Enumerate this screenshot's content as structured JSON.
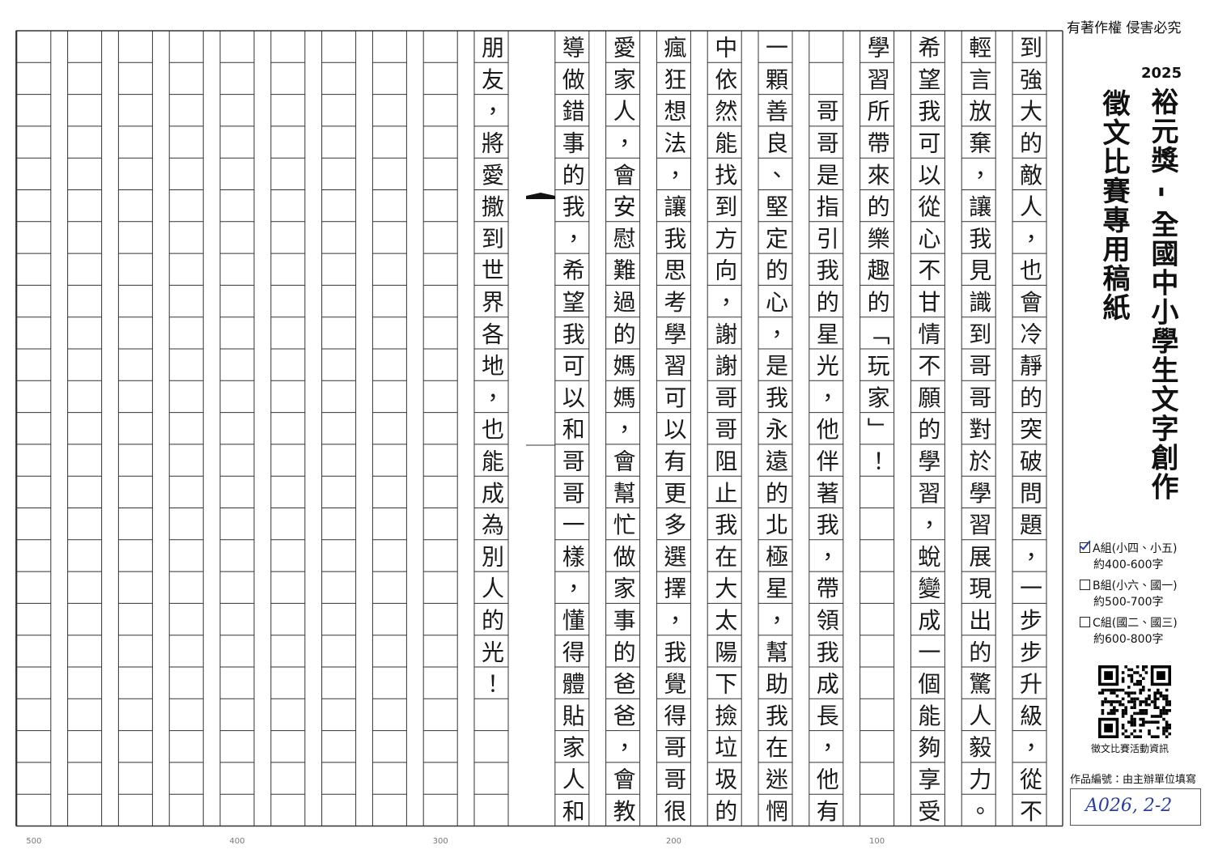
{
  "header": {
    "copyright": "有著作權 侵害必究",
    "year": "2025",
    "title": "裕元獎 - 全國中小學生文字創作",
    "subtitle": "徵文比賽專用稿紙"
  },
  "groups": [
    {
      "label": "A組(小四、小五)",
      "range": "約400-600字",
      "checked": true
    },
    {
      "label": "B組(小六、國一)",
      "range": "約500-700字",
      "checked": false
    },
    {
      "label": "C組(國二、國三)",
      "range": "約600-800字",
      "checked": false
    }
  ],
  "qr_caption": "徵文比賽活動資訊",
  "entry_number": {
    "label": "作品編號：由主辦單位填寫",
    "value": "A026, 2-2"
  },
  "manuscript": {
    "columns": [
      "到強大的敵人，也會冷靜的突破問題，一步步升級，從不",
      "輕言放棄，讓我見識到哥哥對於學習展現出的驚人毅力。",
      "希望我可以從心不甘情不願的學習，蛻變成一個能夠享受",
      "學習所帶來的樂趣的「玩家」！",
      "　　哥哥是指引我的星光，他伴著我，帶領我成長，他有",
      "一顆善良、堅定的心，是我永遠的北極星，幫助我在迷惘",
      "中依然能找到方向，謝謝哥哥阻止我在大太陽下撿垃圾的",
      "瘋狂想法，讓我思考學習可以有更多選擇，我覺得哥哥很",
      "愛家人，會安慰難過的媽媽，會幫忙做家事的爸爸，會教",
      "導做錯事的我，希望我可以和哥哥一樣，懂得體貼家人和",
      "朋友，將愛撒到世界各地，也能成為別人的光！"
    ]
  },
  "count_marks": [
    100,
    200,
    300,
    400,
    500
  ]
}
